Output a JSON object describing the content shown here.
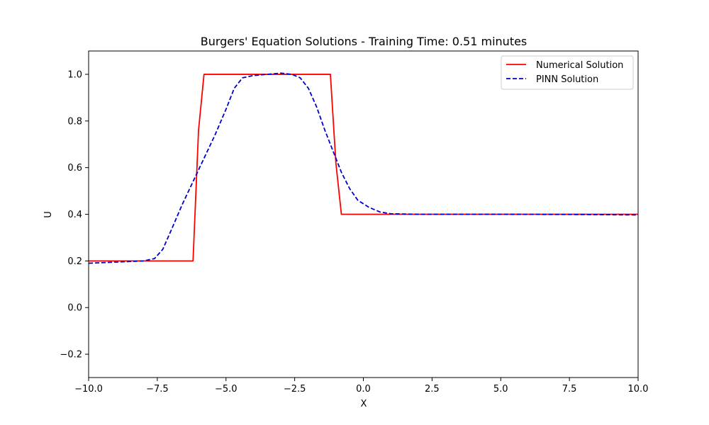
{
  "chart_data": {
    "type": "line",
    "title": "Burgers' Equation Solutions - Training Time: 0.51 minutes",
    "xlabel": "X",
    "ylabel": "U",
    "xlim": [
      -10,
      10
    ],
    "ylim": [
      -0.3,
      1.1
    ],
    "grid": false,
    "legend_position": "top-right",
    "xticks": [
      -10,
      -7.5,
      -5,
      -2.5,
      0,
      2.5,
      5,
      7.5,
      10
    ],
    "xtick_labels": [
      "−10.0",
      "−7.5",
      "−5.0",
      "−2.5",
      "0.0",
      "2.5",
      "5.0",
      "7.5",
      "10.0"
    ],
    "yticks": [
      -0.2,
      0,
      0.2,
      0.4,
      0.6,
      0.8,
      1.0
    ],
    "ytick_labels": [
      "−0.2",
      "0.0",
      "0.2",
      "0.4",
      "0.6",
      "0.8",
      "1.0"
    ],
    "series": [
      {
        "name": "Numerical Solution",
        "color": "#ff0000",
        "style": "solid",
        "points": [
          [
            -10,
            0.2
          ],
          [
            -6.2,
            0.2
          ],
          [
            -6.0,
            0.76
          ],
          [
            -5.8,
            1.0
          ],
          [
            -1.2,
            1.0
          ],
          [
            -1.0,
            0.62
          ],
          [
            -0.8,
            0.4
          ],
          [
            10,
            0.4
          ]
        ]
      },
      {
        "name": "PINN Solution",
        "color": "#0000cc",
        "style": "dashed",
        "points": [
          [
            -10,
            0.19
          ],
          [
            -9.0,
            0.195
          ],
          [
            -8.0,
            0.2
          ],
          [
            -7.6,
            0.21
          ],
          [
            -7.3,
            0.25
          ],
          [
            -7.0,
            0.33
          ],
          [
            -6.6,
            0.44
          ],
          [
            -6.2,
            0.54
          ],
          [
            -5.8,
            0.64
          ],
          [
            -5.4,
            0.74
          ],
          [
            -5.0,
            0.85
          ],
          [
            -4.7,
            0.94
          ],
          [
            -4.4,
            0.985
          ],
          [
            -4.0,
            0.995
          ],
          [
            -3.5,
            1.0
          ],
          [
            -3.0,
            1.005
          ],
          [
            -2.6,
            1.0
          ],
          [
            -2.3,
            0.985
          ],
          [
            -2.0,
            0.94
          ],
          [
            -1.7,
            0.86
          ],
          [
            -1.4,
            0.76
          ],
          [
            -1.1,
            0.67
          ],
          [
            -0.8,
            0.58
          ],
          [
            -0.5,
            0.51
          ],
          [
            -0.2,
            0.46
          ],
          [
            0.2,
            0.43
          ],
          [
            0.6,
            0.41
          ],
          [
            1.0,
            0.402
          ],
          [
            2.0,
            0.4
          ],
          [
            5.0,
            0.4
          ],
          [
            8.0,
            0.399
          ],
          [
            10.0,
            0.397
          ]
        ]
      }
    ]
  }
}
